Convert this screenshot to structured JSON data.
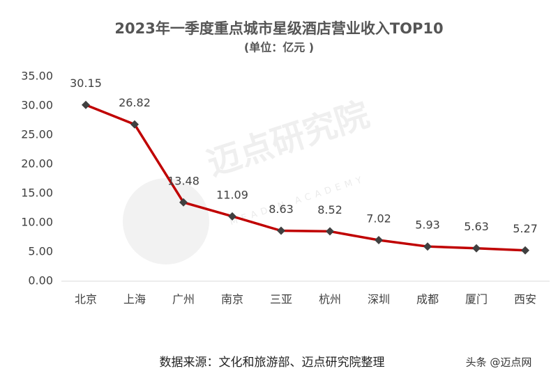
{
  "chart_data": {
    "type": "line",
    "title": "2023年一季度重点城市星级酒店营业收入TOP10",
    "subtitle": "(单位：亿元 )",
    "source": "数据来源：文化和旅游部、迈点研究院整理",
    "categories": [
      "北京",
      "上海",
      "广州",
      "南京",
      "三亚",
      "杭州",
      "深圳",
      "成都",
      "厦门",
      "西安"
    ],
    "values": [
      30.15,
      26.82,
      13.48,
      11.09,
      8.63,
      8.52,
      7.02,
      5.93,
      5.63,
      5.27
    ],
    "color": "#c00000",
    "marker_color": "#404040",
    "ylim": [
      0,
      35
    ],
    "yticks": [
      {
        "value": 0,
        "label": "0.00"
      },
      {
        "value": 5,
        "label": "5.00"
      },
      {
        "value": 10,
        "label": "10.00"
      },
      {
        "value": 15,
        "label": "15.00"
      },
      {
        "value": 20,
        "label": "20.00"
      },
      {
        "value": 25,
        "label": "25.00"
      },
      {
        "value": 30,
        "label": "30.00"
      },
      {
        "value": 35,
        "label": "35.00"
      }
    ],
    "grid": false
  },
  "watermark": {
    "text": "迈点研究院",
    "subtext": "MEADIN ACADEMY"
  },
  "publisher": "头条 @迈点网"
}
